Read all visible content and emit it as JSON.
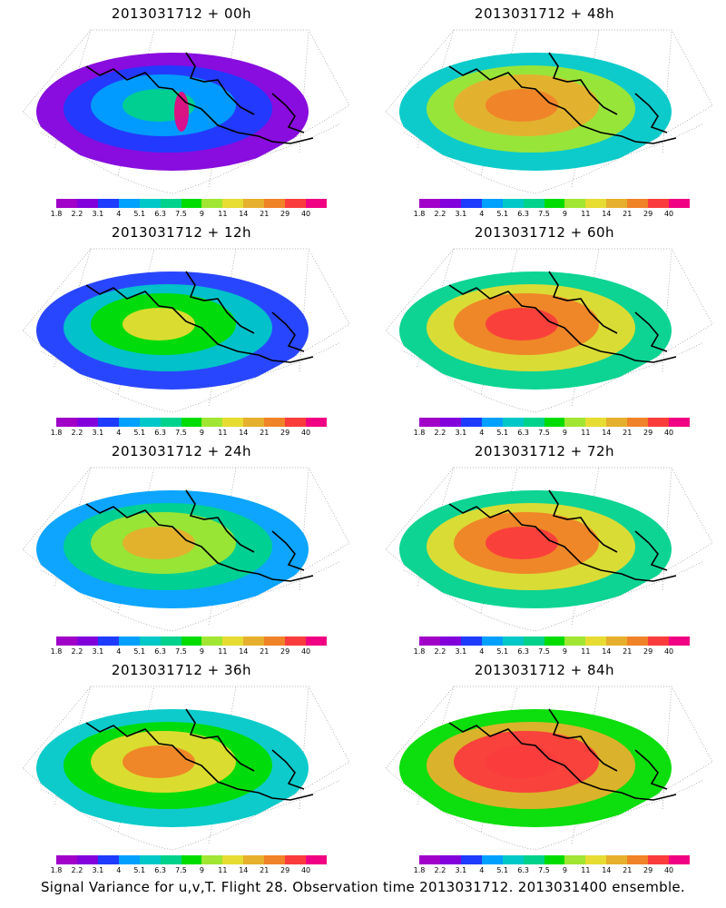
{
  "panels": [
    {
      "title": "2013031712 + 00h",
      "level": 0
    },
    {
      "title": "2013031712 + 48h",
      "level": 4
    },
    {
      "title": "2013031712 + 12h",
      "level": 1
    },
    {
      "title": "2013031712 + 60h",
      "level": 5
    },
    {
      "title": "2013031712 + 24h",
      "level": 2
    },
    {
      "title": "2013031712 + 72h",
      "level": 6
    },
    {
      "title": "2013031712 + 36h",
      "level": 3
    },
    {
      "title": "2013031712 + 84h",
      "level": 7
    }
  ],
  "colorbar": {
    "colors": [
      "#a000c8",
      "#8200dc",
      "#1e3cff",
      "#00a0ff",
      "#00c8c8",
      "#00d28c",
      "#00dc00",
      "#a0e632",
      "#e6dc32",
      "#e6af2d",
      "#f08228",
      "#fa3c3c",
      "#f00082"
    ],
    "labels": [
      "1.8",
      "2.2",
      "3.1",
      "4",
      "5.1",
      "6.3",
      "7.5",
      "9",
      "11",
      "14",
      "21",
      "29",
      "40"
    ]
  },
  "footer": "Signal Variance for u,v,T. Flight 28. Observation time 2013031712. 2013031400 ensemble."
}
